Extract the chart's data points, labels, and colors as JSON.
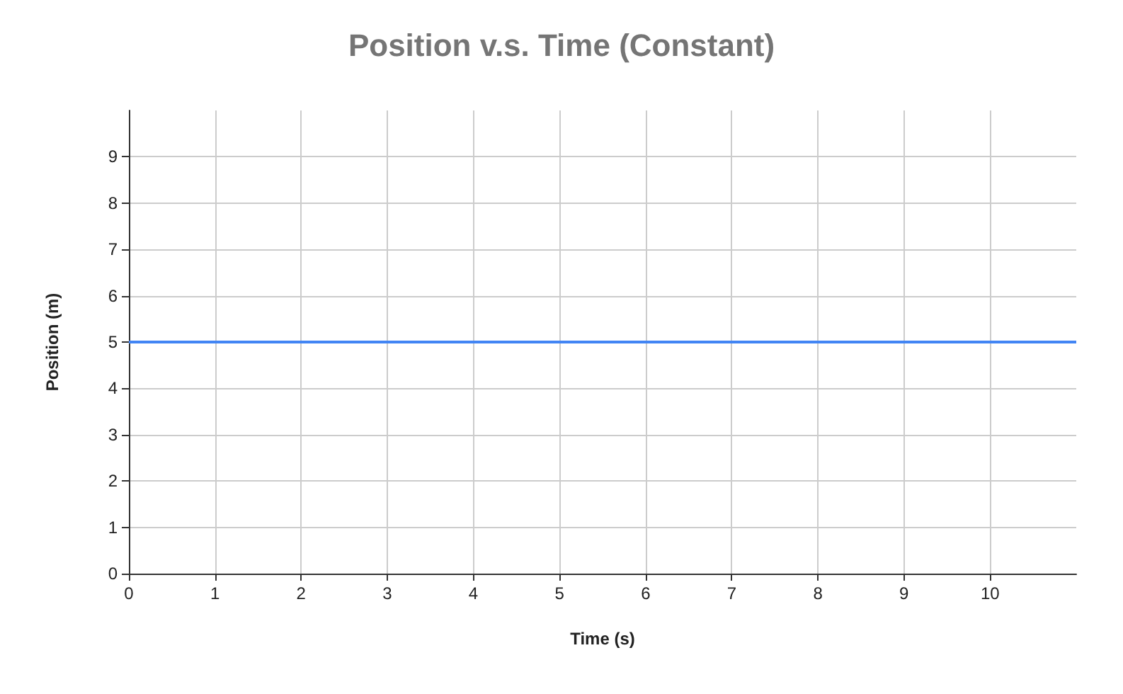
{
  "chart_data": {
    "type": "line",
    "title": "Position v.s. Time (Constant)",
    "xlabel": "Time (s)",
    "ylabel": "Position (m)",
    "x": [
      0,
      11
    ],
    "series": [
      {
        "color": "#4285f4",
        "values": [
          5,
          5
        ]
      }
    ],
    "xlim": [
      0,
      11
    ],
    "xticks": [
      0,
      1,
      2,
      3,
      4,
      5,
      6,
      7,
      8,
      9,
      10
    ],
    "ylim": [
      0,
      10
    ],
    "yticks": [
      0,
      1,
      2,
      3,
      4,
      5,
      6,
      7,
      8,
      9
    ],
    "grid": true,
    "marker": "none",
    "line_style": "solid"
  }
}
